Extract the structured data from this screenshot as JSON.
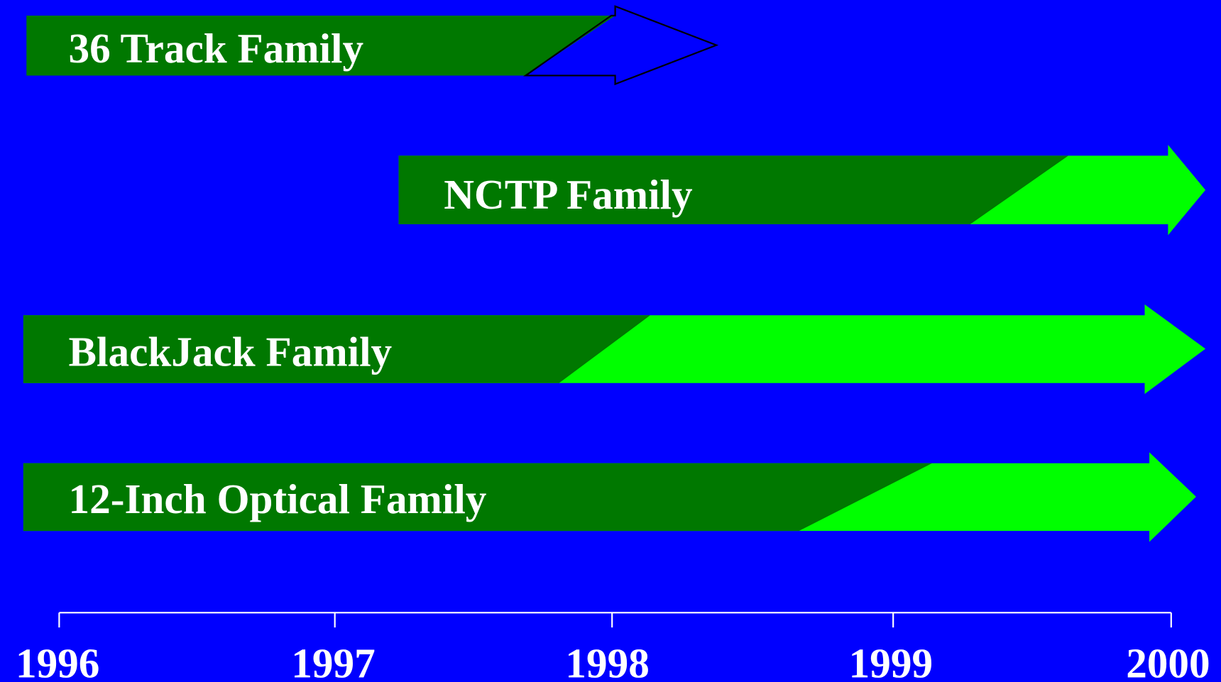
{
  "rows": [
    {
      "label": "36 Track Family"
    },
    {
      "label": "NCTP Family"
    },
    {
      "label": "BlackJack Family"
    },
    {
      "label": "12-Inch Optical Family"
    }
  ],
  "axis": {
    "labels": [
      "1996",
      "1997",
      "1998",
      "1999",
      "2000"
    ]
  }
}
